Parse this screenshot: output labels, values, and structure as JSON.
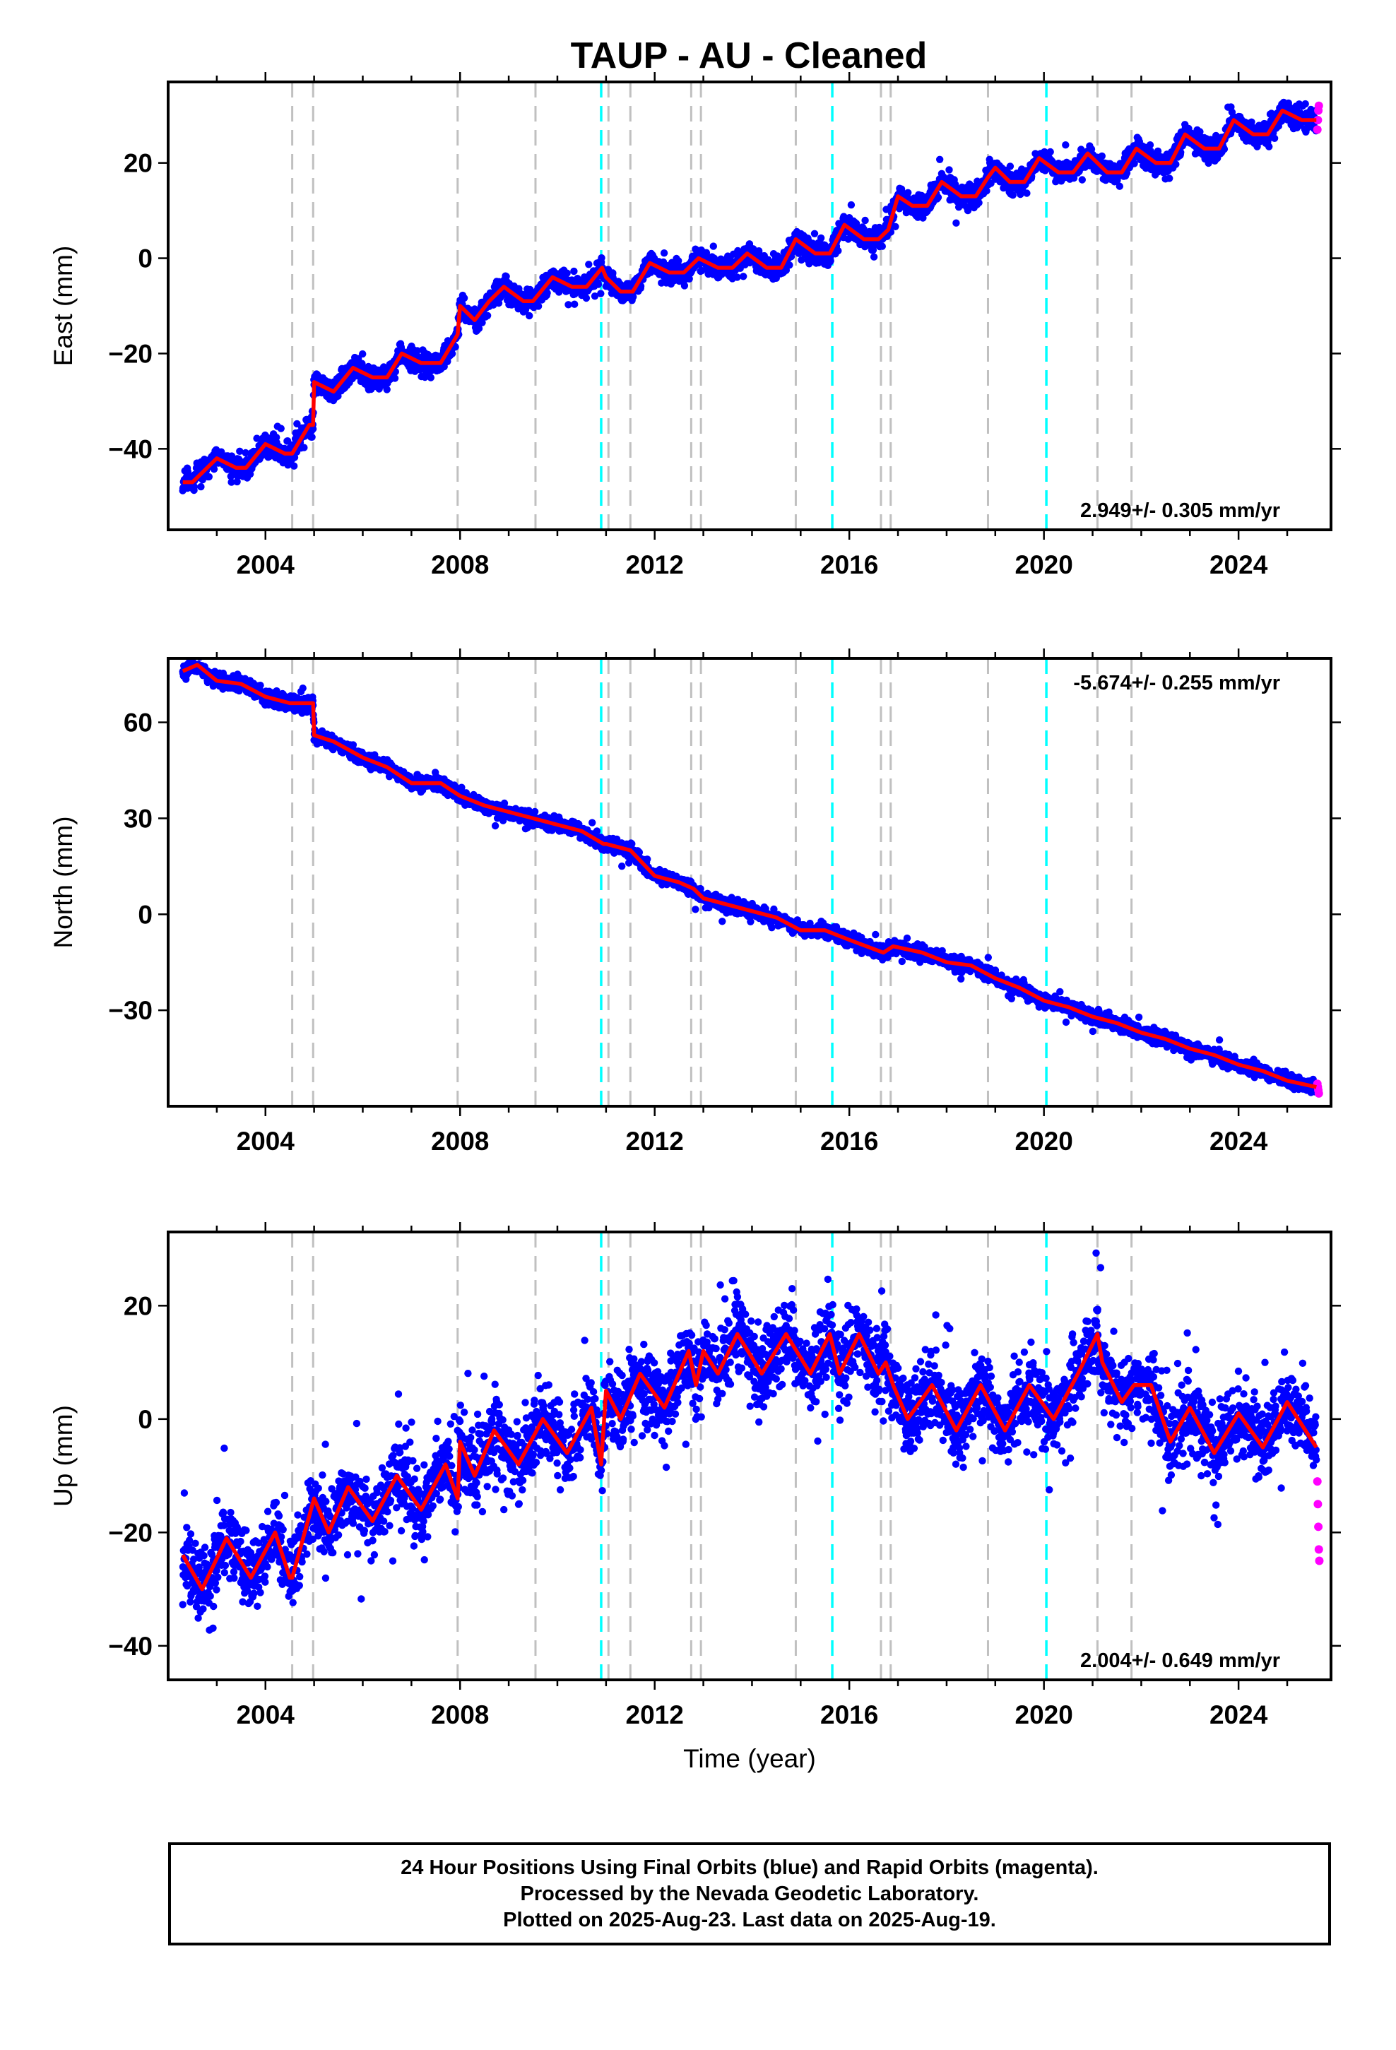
{
  "title": "TAUP  - AU - Cleaned",
  "footer": {
    "line1": "24 Hour Positions Using Final Orbits (blue) and Rapid Orbits (magenta).",
    "line2": "Processed by the Nevada Geodetic Laboratory.",
    "line3": "Plotted on 2025-Aug-23. Last data on 2025-Aug-19."
  },
  "colors": {
    "final_points": "#0000ff",
    "rapid_points": "#ff00ff",
    "model": "#ff0000",
    "event_gray": "#c0c0c0",
    "event_cyan": "#00ffff"
  },
  "chart_data": [
    {
      "type": "scatter",
      "name": "east",
      "title": "",
      "xlabel": "",
      "ylabel": "East (mm)",
      "xlim": [
        2002.0,
        2025.9
      ],
      "ylim": [
        -57,
        37
      ],
      "xticks": [
        "2004",
        "2008",
        "2012",
        "2016",
        "2020",
        "2024"
      ],
      "yticks": [
        -40,
        -20,
        0,
        20
      ],
      "rate_label": "2.949+/- 0.305 mm/yr",
      "rate_corner": "bottom-right",
      "model": {
        "x": [
          2002.3,
          2002.5,
          2003.0,
          2003.4,
          2003.6,
          2004.0,
          2004.4,
          2004.55,
          2004.9,
          2004.98,
          2005.0,
          2005.4,
          2005.8,
          2006.2,
          2006.5,
          2006.8,
          2007.2,
          2007.6,
          2007.95,
          2008.0,
          2008.3,
          2008.6,
          2008.9,
          2009.3,
          2009.5,
          2009.9,
          2010.3,
          2010.6,
          2010.92,
          2011.0,
          2011.3,
          2011.55,
          2011.9,
          2012.3,
          2012.6,
          2012.9,
          2013.3,
          2013.6,
          2013.9,
          2014.3,
          2014.6,
          2014.9,
          2015.3,
          2015.6,
          2015.9,
          2016.3,
          2016.6,
          2016.8,
          2017.0,
          2017.3,
          2017.6,
          2017.9,
          2018.3,
          2018.6,
          2018.85,
          2019.0,
          2019.3,
          2019.6,
          2019.9,
          2020.3,
          2020.6,
          2020.9,
          2021.3,
          2021.6,
          2021.9,
          2022.3,
          2022.6,
          2022.9,
          2023.3,
          2023.6,
          2023.9,
          2024.3,
          2024.6,
          2024.9,
          2025.3,
          2025.6
        ],
        "y": [
          -47,
          -47,
          -42,
          -44,
          -44,
          -39,
          -41,
          -41,
          -35,
          -35,
          -26,
          -28,
          -23,
          -25,
          -25,
          -20,
          -22,
          -22,
          -16,
          -10,
          -13,
          -9,
          -6,
          -9,
          -9,
          -4,
          -6,
          -6,
          -2,
          -4,
          -7,
          -7,
          -1,
          -3,
          -3,
          0,
          -2,
          -2,
          1,
          -2,
          -2,
          4,
          1,
          1,
          7,
          4,
          4,
          6,
          13,
          11,
          11,
          16,
          13,
          13,
          17,
          19,
          16,
          16,
          21,
          18,
          18,
          22,
          18,
          18,
          23,
          20,
          20,
          26,
          23,
          23,
          29,
          26,
          26,
          31,
          29,
          29
        ]
      },
      "rapid": {
        "x": [
          2025.62,
          2025.63,
          2025.64,
          2025.65
        ],
        "y": [
          27,
          29,
          31,
          32
        ]
      }
    },
    {
      "type": "scatter",
      "name": "north",
      "title": "",
      "xlabel": "",
      "ylabel": "North (mm)",
      "xlim": [
        2002.0,
        2025.9
      ],
      "ylim": [
        -60,
        80
      ],
      "xticks": [
        "2004",
        "2008",
        "2012",
        "2016",
        "2020",
        "2024"
      ],
      "yticks": [
        -30,
        0,
        30,
        60
      ],
      "rate_label": "-5.674+/- 0.255 mm/yr",
      "rate_corner": "top-right",
      "model": {
        "x": [
          2002.3,
          2002.6,
          2003.0,
          2003.5,
          2004.0,
          2004.5,
          2004.9,
          2004.98,
          2005.0,
          2005.4,
          2006.0,
          2006.5,
          2007.0,
          2007.6,
          2008.0,
          2008.5,
          2009.0,
          2009.5,
          2010.0,
          2010.5,
          2010.95,
          2011.0,
          2011.5,
          2012.0,
          2012.5,
          2012.8,
          2013.0,
          2013.5,
          2014.0,
          2014.5,
          2015.0,
          2015.5,
          2016.0,
          2016.7,
          2016.9,
          2017.5,
          2018.0,
          2018.5,
          2019.0,
          2019.5,
          2020.0,
          2020.5,
          2021.0,
          2021.5,
          2022.0,
          2022.5,
          2023.0,
          2023.5,
          2024.0,
          2024.5,
          2025.0,
          2025.6
        ],
        "y": [
          76,
          78,
          73,
          72,
          68,
          66,
          66,
          66,
          56,
          54,
          49,
          46,
          41,
          41,
          37,
          34,
          32,
          30,
          28,
          26,
          22,
          22,
          20,
          12,
          10,
          8,
          5,
          3,
          1,
          -1,
          -5,
          -5,
          -8,
          -12,
          -10,
          -12,
          -15,
          -16,
          -20,
          -23,
          -27,
          -29,
          -32,
          -34,
          -37,
          -39,
          -42,
          -44,
          -47,
          -49,
          -52,
          -54
        ]
      },
      "rapid": {
        "x": [
          2025.62,
          2025.63,
          2025.64,
          2025.65
        ],
        "y": [
          -53,
          -54,
          -55,
          -56
        ]
      }
    },
    {
      "type": "scatter",
      "name": "up",
      "title": "",
      "xlabel": "Time (year)",
      "ylabel": "Up (mm)",
      "xlim": [
        2002.0,
        2025.9
      ],
      "ylim": [
        -46,
        33
      ],
      "xticks": [
        "2004",
        "2008",
        "2012",
        "2016",
        "2020",
        "2024"
      ],
      "yticks": [
        -40,
        -20,
        0,
        20
      ],
      "rate_label": "2.004+/- 0.649 mm/yr",
      "rate_corner": "bottom-right",
      "model": {
        "x": [
          2002.3,
          2002.7,
          2003.2,
          2003.7,
          2004.2,
          2004.5,
          2004.55,
          2005.0,
          2005.3,
          2005.7,
          2006.2,
          2006.7,
          2007.2,
          2007.7,
          2007.95,
          2008.0,
          2008.3,
          2008.7,
          2009.2,
          2009.7,
          2010.2,
          2010.7,
          2010.9,
          2011.0,
          2011.3,
          2011.7,
          2012.2,
          2012.7,
          2012.85,
          2013.0,
          2013.3,
          2013.7,
          2014.2,
          2014.7,
          2015.2,
          2015.6,
          2015.8,
          2016.2,
          2016.6,
          2016.75,
          2016.9,
          2017.2,
          2017.7,
          2018.2,
          2018.7,
          2019.2,
          2019.7,
          2020.2,
          2020.7,
          2021.1,
          2021.2,
          2021.6,
          2021.85,
          2022.2,
          2022.6,
          2023.0,
          2023.5,
          2024.0,
          2024.5,
          2025.0,
          2025.6
        ],
        "y": [
          -24,
          -30,
          -21,
          -28,
          -20,
          -28,
          -28,
          -14,
          -20,
          -12,
          -18,
          -10,
          -16,
          -8,
          -14,
          -4,
          -10,
          -2,
          -8,
          0,
          -6,
          2,
          -8,
          5,
          0,
          8,
          2,
          12,
          6,
          12,
          8,
          15,
          8,
          15,
          8,
          15,
          8,
          15,
          8,
          10,
          6,
          0,
          6,
          -2,
          6,
          -2,
          6,
          0,
          8,
          15,
          10,
          3,
          6,
          6,
          -4,
          2,
          -6,
          1,
          -5,
          3,
          -5
        ]
      },
      "rapid": {
        "x": [
          2025.62,
          2025.63,
          2025.64,
          2025.65,
          2025.66
        ],
        "y": [
          -11,
          -15,
          -19,
          -23,
          -25
        ]
      }
    }
  ],
  "events": {
    "gray": [
      2004.55,
      2004.98,
      2007.95,
      2009.55,
      2011.05,
      2011.5,
      2012.75,
      2012.95,
      2014.9,
      2016.65,
      2016.85,
      2018.85,
      2021.1,
      2021.8
    ],
    "cyan": [
      2010.9,
      2015.65,
      2020.05
    ]
  },
  "noise_seeds": {
    "east": 11,
    "north": 23,
    "up": 37
  }
}
